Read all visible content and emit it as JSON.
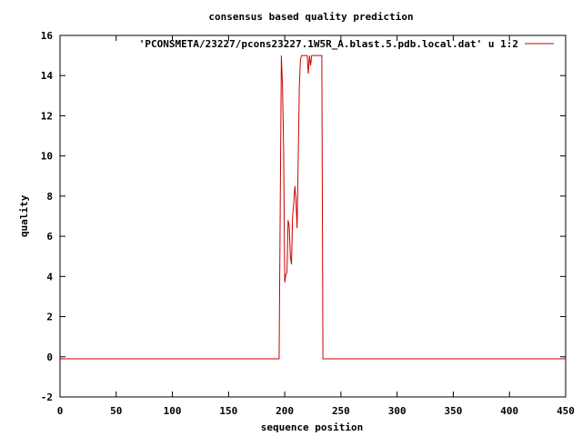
{
  "chart_data": {
    "type": "line",
    "title": "consensus based quality prediction",
    "xlabel": "sequence position",
    "ylabel": "quality",
    "xlim": [
      0,
      450
    ],
    "ylim": [
      -2,
      16
    ],
    "xticks": [
      0,
      50,
      100,
      150,
      200,
      250,
      300,
      350,
      400,
      450
    ],
    "yticks": [
      -2,
      0,
      2,
      4,
      6,
      8,
      10,
      12,
      14,
      16
    ],
    "legend_position": "top-right",
    "series": [
      {
        "name": "'PCONSMETA/23227/pcons23227.1W5R_A.blast.5.pdb.local.dat' u 1:2",
        "color": "#cc0000",
        "x": [
          0,
          195,
          196,
          197,
          198,
          199,
          200,
          201,
          202,
          203,
          204,
          205,
          206,
          207,
          208,
          209,
          210,
          211,
          212,
          213,
          214,
          215,
          216,
          217,
          218,
          219,
          220,
          221,
          222,
          223,
          224,
          225,
          226,
          227,
          228,
          229,
          230,
          231,
          232,
          233,
          234,
          450
        ],
        "y": [
          -0.1,
          -0.1,
          7.5,
          15,
          13.5,
          10.5,
          3.7,
          4.1,
          4.2,
          6.8,
          6.5,
          5.0,
          4.6,
          7.0,
          7.6,
          8.5,
          7.8,
          6.4,
          9.8,
          13.5,
          14.8,
          15,
          15,
          15,
          15,
          15,
          15,
          14.1,
          15,
          14.5,
          15,
          15,
          15,
          15,
          15,
          15,
          15,
          15,
          15,
          15,
          -0.1,
          -0.1
        ]
      }
    ]
  }
}
